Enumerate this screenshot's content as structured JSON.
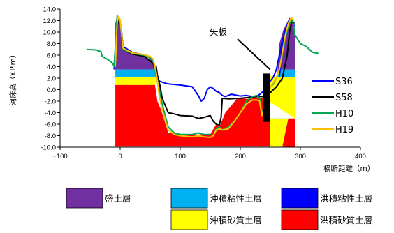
{
  "chart_data": {
    "type": "area",
    "xlabel": "横断距離（m）",
    "ylabel": "河床高（Y.P.m）",
    "xlim": [
      -100,
      400
    ],
    "ylim": [
      -10,
      14
    ],
    "xticks": [
      -100,
      0,
      100,
      200,
      300,
      400
    ],
    "xtick_labels": [
      "−100",
      "0",
      "100",
      "200",
      "300",
      "400"
    ],
    "yticks": [
      -10,
      -8,
      -6,
      -4,
      -2,
      0,
      2,
      4,
      6,
      8,
      10,
      12,
      14
    ],
    "ytick_labels": [
      "-10.0",
      "-8.0",
      "-6.0",
      "-4.0",
      "-2.0",
      "0.0",
      "2.0",
      "4.0",
      "6.0",
      "8.0",
      "10.0",
      "12.0",
      "14.0"
    ],
    "annotation": {
      "text": "矢板",
      "target": [
        252,
        3.5
      ]
    },
    "sheet_pile": {
      "x": 244,
      "y_top": 2.8,
      "y_bottom": -5.6
    },
    "layers": [
      {
        "name": "盛土層",
        "color": "#7030a0",
        "polygon": [
          [
            -8,
            3.5
          ],
          [
            -8,
            11.5
          ],
          [
            -5,
            12.8
          ],
          [
            2,
            11
          ],
          [
            5,
            7.5
          ],
          [
            20,
            6.2
          ],
          [
            40,
            5.8
          ],
          [
            55,
            5
          ],
          [
            62,
            3.5
          ],
          [
            -8,
            3.5
          ],
          [
            262,
            3.5
          ],
          [
            265,
            8
          ],
          [
            272,
            10.5
          ],
          [
            282,
            12.5
          ],
          [
            288,
            11.5
          ],
          [
            291,
            10.5
          ],
          [
            291,
            3.5
          ]
        ]
      },
      {
        "name": "沖積粘性土層",
        "color": "#00b0f0",
        "polygon": [
          [
            -8,
            2.2
          ],
          [
            -8,
            3.5
          ],
          [
            62,
            3.5
          ],
          [
            60,
            2.2
          ]
        ]
      },
      {
        "name": "沖積粘性土層",
        "color": "#00b0f0",
        "polygon": [
          [
            262,
            3.5
          ],
          [
            291,
            3.5
          ],
          [
            291,
            2.2
          ],
          [
            262,
            2.2
          ]
        ]
      },
      {
        "name": "沖積粘性土層",
        "color": "#00b0f0",
        "polygon": [
          [
            250,
            -5
          ],
          [
            250,
            -8.2
          ],
          [
            280,
            -8.2
          ],
          [
            280,
            -5
          ]
        ]
      },
      {
        "name": "沖積砂質土層",
        "color": "#ffff00",
        "polygon": [
          [
            -8,
            0.8
          ],
          [
            -8,
            2.2
          ],
          [
            60,
            2.2
          ],
          [
            58,
            0.8
          ]
        ]
      },
      {
        "name": "沖積砂質土層",
        "color": "#ffff00",
        "polygon": [
          [
            240,
            -1.5
          ],
          [
            245,
            2.5
          ],
          [
            262,
            2.2
          ],
          [
            291,
            2.2
          ],
          [
            291,
            -5
          ],
          [
            250,
            -5
          ],
          [
            250,
            -9.9
          ],
          [
            270,
            -9.9
          ],
          [
            280,
            -5
          ],
          [
            291,
            -5
          ]
        ]
      },
      {
        "name": "洪積粘性土層",
        "color": "#0000ff",
        "polygon": [
          [
            264,
            2.2
          ],
          [
            268,
            7
          ],
          [
            276,
            11
          ],
          [
            282,
            12.5
          ],
          [
            276,
            10.5
          ],
          [
            270,
            6
          ],
          [
            266,
            2.2
          ]
        ]
      },
      {
        "name": "洪積砂質土層",
        "color": "#ff0000",
        "polygon": [
          [
            -8,
            -10
          ],
          [
            -8,
            0.8
          ],
          [
            58,
            0.8
          ],
          [
            62,
            -2
          ],
          [
            68,
            -3.5
          ],
          [
            80,
            -7.5
          ],
          [
            100,
            -7.8
          ],
          [
            150,
            -7.8
          ],
          [
            160,
            -6
          ],
          [
            165,
            -6.5
          ],
          [
            175,
            -4
          ],
          [
            195,
            -1.5
          ],
          [
            210,
            -1.6
          ],
          [
            225,
            -1.5
          ],
          [
            235,
            -1.5
          ],
          [
            240,
            -1.5
          ],
          [
            245,
            -1.5
          ],
          [
            250,
            -5
          ],
          [
            250,
            -9.9
          ],
          [
            -8,
            -9.9
          ]
        ]
      },
      {
        "name": "洪積砂質土層",
        "color": "#ff0000",
        "polygon": [
          [
            270,
            -9.9
          ],
          [
            280,
            -5
          ],
          [
            291,
            -5
          ],
          [
            291,
            -10
          ]
        ]
      }
    ],
    "series": [
      {
        "name": "S36",
        "color": "#0000ff",
        "x": [
          -10,
          -6,
          -3,
          0,
          2,
          5,
          20,
          40,
          50,
          55,
          58,
          60,
          62,
          65,
          70,
          80,
          100,
          120,
          130,
          135,
          140,
          145,
          150,
          155,
          160,
          165,
          170,
          175,
          180,
          185,
          190,
          200,
          210,
          220,
          230,
          235,
          240,
          245,
          250,
          255,
          260,
          265,
          270,
          275,
          280,
          283,
          286,
          290
        ],
        "y": [
          3.5,
          11,
          12.5,
          12,
          10,
          7.5,
          6.5,
          6,
          5.5,
          5,
          4,
          3,
          2.2,
          1.5,
          1.3,
          1.0,
          0.8,
          0.5,
          -1.0,
          -2.0,
          -1.5,
          0,
          0.5,
          0.2,
          -0.3,
          -0.5,
          -1.0,
          -1.2,
          -1.0,
          -0.8,
          -0.9,
          -1.1,
          -1.0,
          -1.2,
          -1.0,
          -0.6,
          0,
          0.8,
          1.5,
          2.2,
          3.5,
          6,
          8.5,
          10.5,
          11.5,
          12.2,
          12,
          11
        ]
      },
      {
        "name": "S58",
        "color": "#000000",
        "x": [
          -8,
          -5,
          -2,
          2,
          5,
          20,
          40,
          50,
          55,
          58,
          60,
          62,
          66,
          70,
          80,
          90,
          100,
          120,
          130,
          140,
          150,
          155,
          160,
          165,
          168,
          170,
          180,
          200,
          220,
          230,
          235,
          240,
          245,
          250,
          260,
          270,
          278,
          282,
          286,
          290
        ],
        "y": [
          4,
          11,
          12.5,
          10.5,
          7,
          6.2,
          5.8,
          5,
          4.5,
          3.5,
          4,
          2.5,
          0.8,
          -1.5,
          -4.0,
          -4.2,
          -4.5,
          -4.6,
          -5.0,
          -4.8,
          -4.5,
          -5.5,
          -6.0,
          -6.2,
          -4.8,
          -1.5,
          -1.6,
          -1.5,
          -1.3,
          -1.2,
          -1.2,
          -1.2,
          -1.0,
          -0.5,
          0.5,
          2.0,
          6,
          10,
          12,
          11.5
        ]
      },
      {
        "name": "H10",
        "color": "#00a651",
        "x": [
          -55,
          -40,
          -32,
          -30,
          -25,
          -20,
          -15,
          -12,
          -10,
          -8,
          -5,
          -2,
          0,
          3,
          5,
          20,
          40,
          50,
          55,
          60,
          62,
          65,
          70,
          80,
          90,
          100,
          120,
          130,
          140,
          150,
          155,
          160,
          165,
          170,
          180,
          190,
          200,
          210,
          220,
          228,
          232,
          236,
          240,
          245,
          250,
          255,
          260,
          265,
          270,
          275,
          280,
          285,
          288,
          291,
          300,
          310,
          320,
          330
        ],
        "y": [
          7,
          6.9,
          6.6,
          5.8,
          5.5,
          5.2,
          4.8,
          4.5,
          4.0,
          7.5,
          12.8,
          12.5,
          11.8,
          9.0,
          7.0,
          6.3,
          6.0,
          5.5,
          5.0,
          2.5,
          1.5,
          0,
          -2.5,
          -6.5,
          -7.5,
          -7.8,
          -7.8,
          -7.5,
          -7.8,
          -7.8,
          -8.0,
          -6.8,
          -6.5,
          -7.0,
          -6.5,
          -5.5,
          -4.0,
          -2.0,
          -1.2,
          -1.0,
          -1.5,
          -4.0,
          -3.0,
          -1.0,
          0.5,
          1.0,
          2.0,
          3.5,
          6,
          9,
          11,
          12.2,
          11.5,
          9.5,
          8,
          7.5,
          6.5,
          6.3
        ]
      },
      {
        "name": "H19",
        "color": "#ffc000",
        "x": [
          -8,
          -5,
          -3,
          0,
          3,
          5,
          20,
          40,
          50,
          55,
          60,
          62,
          65,
          70,
          80,
          90,
          100,
          120,
          130,
          140,
          150,
          155,
          160,
          165,
          170,
          180,
          190,
          200,
          210,
          220,
          228,
          232,
          236,
          240,
          245,
          250,
          255,
          260,
          265,
          270,
          275,
          280,
          285,
          290
        ],
        "y": [
          4,
          11.5,
          12.7,
          12.2,
          9,
          7.2,
          6.4,
          6.1,
          5.8,
          5.3,
          3,
          1.5,
          -1.0,
          -3.5,
          -7.0,
          -7.8,
          -8.0,
          -8.2,
          -8.0,
          -8.2,
          -8.3,
          -8.0,
          -7.0,
          -6.8,
          -7.0,
          -6.8,
          -5.5,
          -4.0,
          -2.5,
          -1.8,
          -1.8,
          -2.0,
          -4.5,
          -3.0,
          -1.5,
          0.5,
          1.2,
          2.0,
          3.5,
          6.5,
          9.5,
          11.5,
          12.5,
          12
        ]
      }
    ]
  },
  "legend_lines": [
    {
      "name": "S36",
      "color": "#0000ff"
    },
    {
      "name": "S58",
      "color": "#000000"
    },
    {
      "name": "H10",
      "color": "#00a651"
    },
    {
      "name": "H19",
      "color": "#ffc000"
    }
  ],
  "soil_legend": [
    {
      "label": "盛土層",
      "color": "#7030a0"
    },
    {
      "label": "沖積粘性土層",
      "color": "#00b0f0"
    },
    {
      "label": "洪積粘性土層",
      "color": "#0000ff"
    },
    {
      "label": "沖積砂質土層",
      "color": "#ffff00"
    },
    {
      "label": "洪積砂質土層",
      "color": "#ff0000"
    }
  ]
}
